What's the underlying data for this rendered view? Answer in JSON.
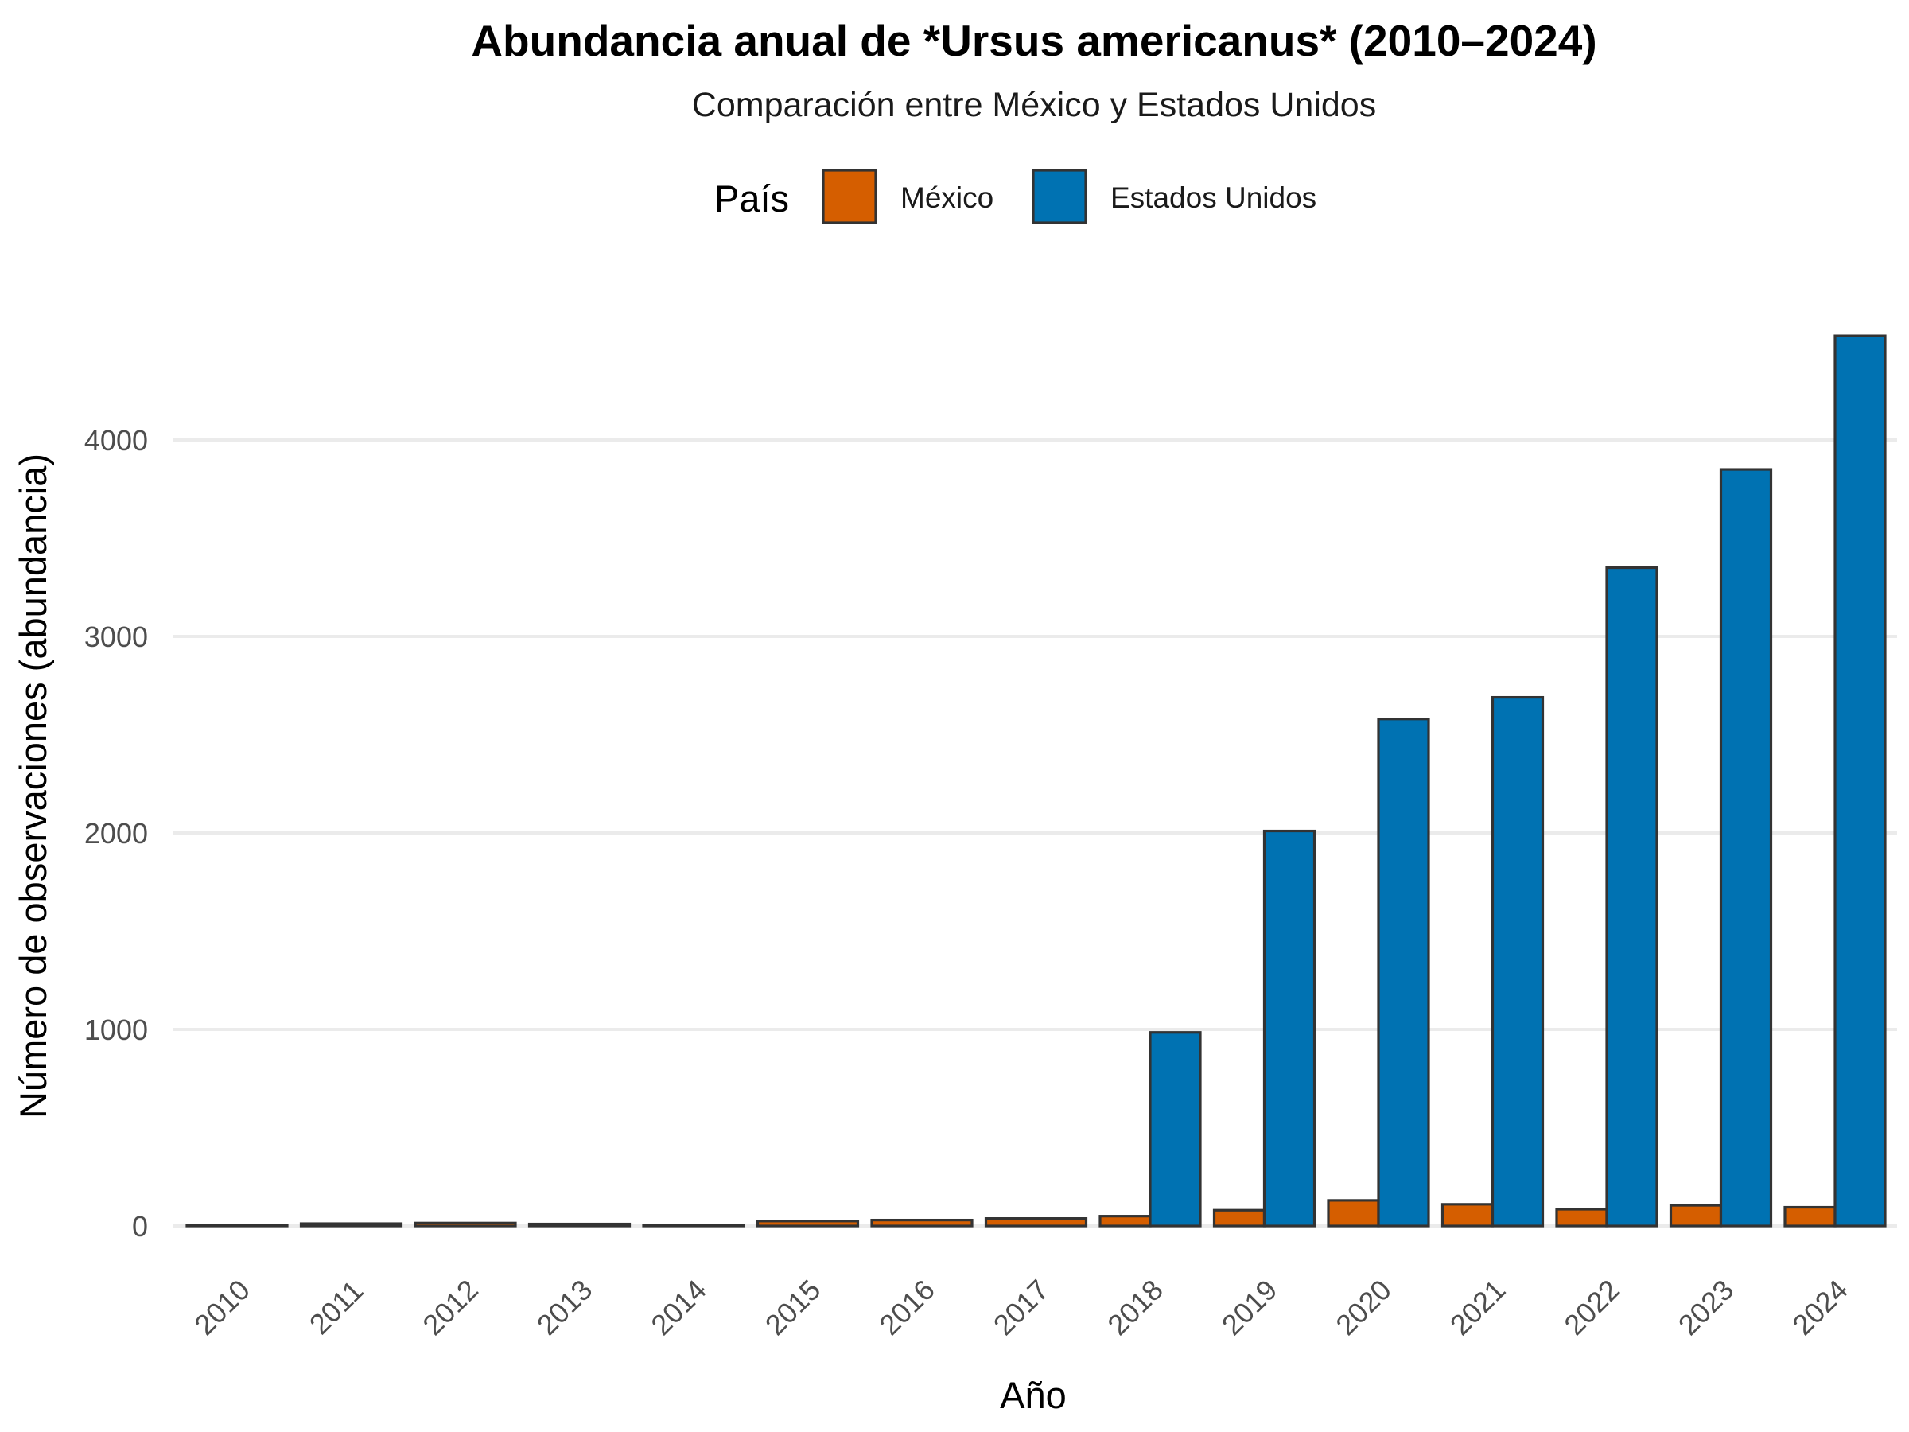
{
  "chart_data": {
    "type": "bar",
    "title": "Abundancia anual de *Ursus americanus* (2010–2024)",
    "subtitle": "Comparación entre México y Estados Unidos",
    "xlabel": "Año",
    "ylabel": "Número de observaciones (abundancia)",
    "legend_title": "País",
    "legend_position": "top",
    "grid": true,
    "ylim": [
      0,
      4550
    ],
    "y_ticks": [
      0,
      1000,
      2000,
      3000,
      4000
    ],
    "categories": [
      "2010",
      "2011",
      "2012",
      "2013",
      "2014",
      "2015",
      "2016",
      "2017",
      "2018",
      "2019",
      "2020",
      "2021",
      "2022",
      "2023",
      "2024"
    ],
    "series": [
      {
        "name": "México",
        "color": "#D55E00",
        "values": [
          5,
          12,
          15,
          10,
          5,
          25,
          30,
          38,
          50,
          80,
          130,
          110,
          85,
          105,
          95
        ]
      },
      {
        "name": "Estados Unidos",
        "color": "#0072B2",
        "values": [
          0,
          0,
          0,
          0,
          0,
          0,
          0,
          0,
          985,
          2010,
          2580,
          2690,
          3350,
          3850,
          4530
        ]
      }
    ]
  }
}
